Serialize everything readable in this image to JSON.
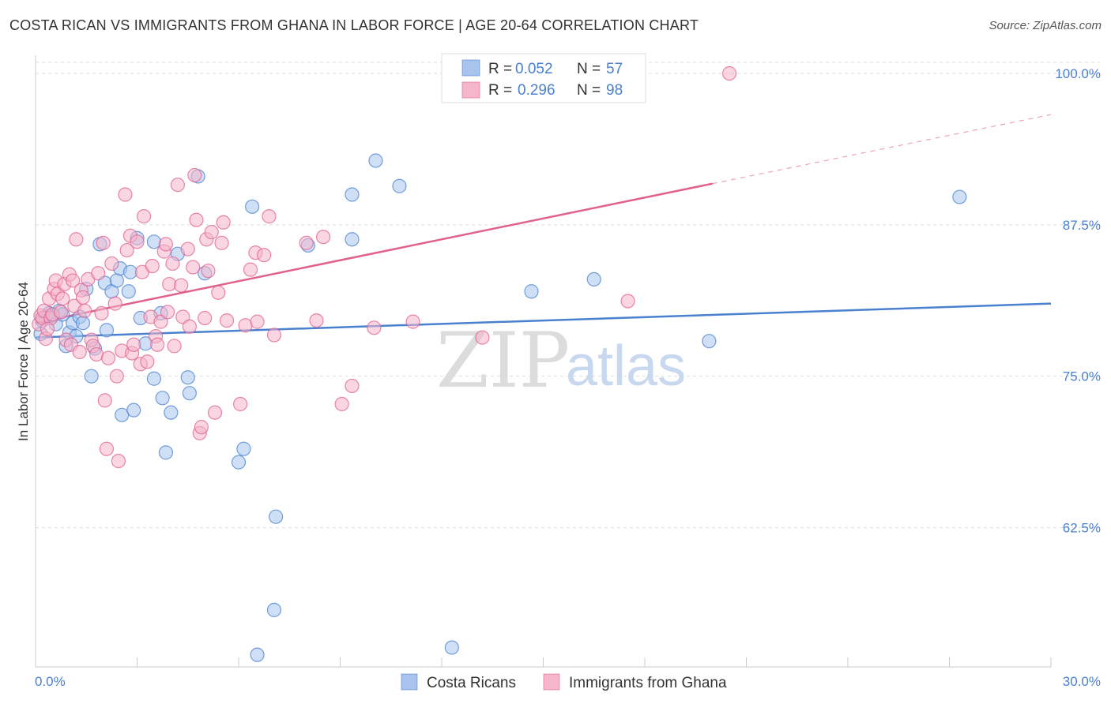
{
  "title": "COSTA RICAN VS IMMIGRANTS FROM GHANA IN LABOR FORCE | AGE 20-64 CORRELATION CHART",
  "source": "Source: ZipAtlas.com",
  "watermark": {
    "part1": "ZIP",
    "part2": "atlas"
  },
  "colors": {
    "blue": "#4a80d0",
    "blue_fill": "#a8c4ec",
    "pink": "#e0608f",
    "pink_fill": "#f5b5ca",
    "grid": "#dddddd"
  },
  "legend": {
    "r_label": "R =",
    "n_label": "N =",
    "rows": [
      {
        "series": "blue",
        "r": "0.052",
        "n": "57"
      },
      {
        "series": "pink",
        "r": "0.296",
        "n": "98"
      }
    ]
  },
  "chart_data": {
    "type": "scatter",
    "title": "COSTA RICAN VS IMMIGRANTS FROM GHANA IN LABOR FORCE | AGE 20-64 CORRELATION CHART",
    "xlabel": "",
    "ylabel": "In Labor Force | Age 20-64",
    "xlim": [
      0,
      30
    ],
    "ylim": [
      51,
      101.5
    ],
    "x_tick_labels": [
      "0.0%",
      "30.0%"
    ],
    "y_ticks": [
      62.5,
      75.0,
      87.5,
      100.0
    ],
    "y_tick_labels": [
      "62.5%",
      "75.0%",
      "87.5%",
      "100.0%"
    ],
    "grid": true,
    "series": [
      {
        "name": "Costa Ricans",
        "color": "blue",
        "trend": {
          "x0": 0,
          "y0": 78.2,
          "x1": 30,
          "y1": 81.0,
          "dashed_to": null
        },
        "points": [
          [
            0.15,
            78.5
          ],
          [
            0.2,
            79.6
          ],
          [
            0.3,
            79.9
          ],
          [
            0.4,
            80.2
          ],
          [
            0.5,
            80.0
          ],
          [
            0.6,
            79.3
          ],
          [
            0.7,
            80.4
          ],
          [
            0.8,
            80.1
          ],
          [
            0.9,
            77.5
          ],
          [
            1.0,
            78.6
          ],
          [
            1.1,
            79.4
          ],
          [
            1.2,
            78.3
          ],
          [
            1.3,
            79.9
          ],
          [
            1.4,
            79.4
          ],
          [
            1.5,
            82.2
          ],
          [
            1.65,
            75.0
          ],
          [
            1.75,
            77.3
          ],
          [
            1.9,
            85.9
          ],
          [
            2.05,
            82.7
          ],
          [
            2.1,
            78.8
          ],
          [
            2.25,
            82.0
          ],
          [
            2.4,
            82.9
          ],
          [
            2.5,
            83.9
          ],
          [
            2.55,
            71.8
          ],
          [
            2.75,
            82.0
          ],
          [
            2.8,
            83.6
          ],
          [
            2.9,
            72.2
          ],
          [
            3.0,
            86.4
          ],
          [
            3.1,
            79.8
          ],
          [
            3.25,
            77.7
          ],
          [
            3.5,
            86.1
          ],
          [
            3.5,
            74.8
          ],
          [
            3.7,
            80.2
          ],
          [
            3.75,
            73.2
          ],
          [
            3.85,
            68.7
          ],
          [
            4.0,
            72.0
          ],
          [
            4.2,
            85.1
          ],
          [
            4.5,
            74.9
          ],
          [
            4.55,
            73.6
          ],
          [
            4.8,
            91.5
          ],
          [
            5.0,
            83.5
          ],
          [
            6.0,
            67.9
          ],
          [
            6.15,
            69.0
          ],
          [
            6.4,
            89.0
          ],
          [
            6.55,
            52.0
          ],
          [
            7.05,
            55.7
          ],
          [
            7.1,
            63.4
          ],
          [
            8.05,
            85.8
          ],
          [
            9.35,
            90.0
          ],
          [
            9.35,
            86.3
          ],
          [
            10.05,
            92.8
          ],
          [
            10.75,
            90.7
          ],
          [
            12.3,
            52.6
          ],
          [
            14.65,
            82.0
          ],
          [
            16.5,
            83.0
          ],
          [
            19.9,
            77.9
          ],
          [
            27.3,
            89.8
          ]
        ]
      },
      {
        "name": "Immigrants from Ghana",
        "color": "pink",
        "trend": {
          "x0": 0,
          "y0": 79.4,
          "x1": 20.0,
          "y1": 90.9,
          "dashed_to": {
            "x": 30,
            "y": 96.6
          }
        },
        "points": [
          [
            0.1,
            79.3
          ],
          [
            0.15,
            80.0
          ],
          [
            0.2,
            79.8
          ],
          [
            0.25,
            80.4
          ],
          [
            0.3,
            78.1
          ],
          [
            0.4,
            81.4
          ],
          [
            0.45,
            79.8
          ],
          [
            0.5,
            80.1
          ],
          [
            0.55,
            82.2
          ],
          [
            0.6,
            82.9
          ],
          [
            0.65,
            81.8
          ],
          [
            0.75,
            80.3
          ],
          [
            0.8,
            81.4
          ],
          [
            0.85,
            82.6
          ],
          [
            0.9,
            78.0
          ],
          [
            1.0,
            83.4
          ],
          [
            1.05,
            77.6
          ],
          [
            1.1,
            82.9
          ],
          [
            1.15,
            80.8
          ],
          [
            1.2,
            86.3
          ],
          [
            1.3,
            77.0
          ],
          [
            1.35,
            82.1
          ],
          [
            1.4,
            81.5
          ],
          [
            1.45,
            80.4
          ],
          [
            1.55,
            83.0
          ],
          [
            1.65,
            78.0
          ],
          [
            1.7,
            77.5
          ],
          [
            1.8,
            76.8
          ],
          [
            1.85,
            83.5
          ],
          [
            1.95,
            80.2
          ],
          [
            2.0,
            86.0
          ],
          [
            2.05,
            73.0
          ],
          [
            2.1,
            69.0
          ],
          [
            2.15,
            76.5
          ],
          [
            2.25,
            84.3
          ],
          [
            2.35,
            81.0
          ],
          [
            2.4,
            75.0
          ],
          [
            2.45,
            68.0
          ],
          [
            2.55,
            77.1
          ],
          [
            2.65,
            90.0
          ],
          [
            2.7,
            85.4
          ],
          [
            2.8,
            86.6
          ],
          [
            2.85,
            76.9
          ],
          [
            2.9,
            77.6
          ],
          [
            3.0,
            86.1
          ],
          [
            3.1,
            76.0
          ],
          [
            3.15,
            83.6
          ],
          [
            3.2,
            88.2
          ],
          [
            3.3,
            76.2
          ],
          [
            3.4,
            79.9
          ],
          [
            3.45,
            84.1
          ],
          [
            3.55,
            78.3
          ],
          [
            3.6,
            77.6
          ],
          [
            3.7,
            79.5
          ],
          [
            3.8,
            85.3
          ],
          [
            3.85,
            85.9
          ],
          [
            3.9,
            80.3
          ],
          [
            3.95,
            82.6
          ],
          [
            4.05,
            84.3
          ],
          [
            4.1,
            77.5
          ],
          [
            4.2,
            90.8
          ],
          [
            4.3,
            82.5
          ],
          [
            4.35,
            79.9
          ],
          [
            4.5,
            85.5
          ],
          [
            4.55,
            79.1
          ],
          [
            4.65,
            84.0
          ],
          [
            4.7,
            91.6
          ],
          [
            4.75,
            87.9
          ],
          [
            4.85,
            70.3
          ],
          [
            4.9,
            70.8
          ],
          [
            5.0,
            79.8
          ],
          [
            5.05,
            86.3
          ],
          [
            5.1,
            83.7
          ],
          [
            5.2,
            86.9
          ],
          [
            5.3,
            72.0
          ],
          [
            5.4,
            81.9
          ],
          [
            5.5,
            86.0
          ],
          [
            5.55,
            87.7
          ],
          [
            5.65,
            79.6
          ],
          [
            6.05,
            72.7
          ],
          [
            6.2,
            79.2
          ],
          [
            6.35,
            83.8
          ],
          [
            6.5,
            85.2
          ],
          [
            6.55,
            79.5
          ],
          [
            6.75,
            85.0
          ],
          [
            6.9,
            88.2
          ],
          [
            7.05,
            78.4
          ],
          [
            8.0,
            86.0
          ],
          [
            8.3,
            79.6
          ],
          [
            8.5,
            86.5
          ],
          [
            9.05,
            72.7
          ],
          [
            9.35,
            74.2
          ],
          [
            10.0,
            79.0
          ],
          [
            11.15,
            79.5
          ],
          [
            13.2,
            78.2
          ],
          [
            17.5,
            81.2
          ],
          [
            20.5,
            100.0
          ],
          [
            0.35,
            78.9
          ]
        ]
      }
    ]
  },
  "bottom_legend": [
    {
      "label": "Costa Ricans",
      "color": "blue"
    },
    {
      "label": "Immigrants from Ghana",
      "color": "pink"
    }
  ]
}
